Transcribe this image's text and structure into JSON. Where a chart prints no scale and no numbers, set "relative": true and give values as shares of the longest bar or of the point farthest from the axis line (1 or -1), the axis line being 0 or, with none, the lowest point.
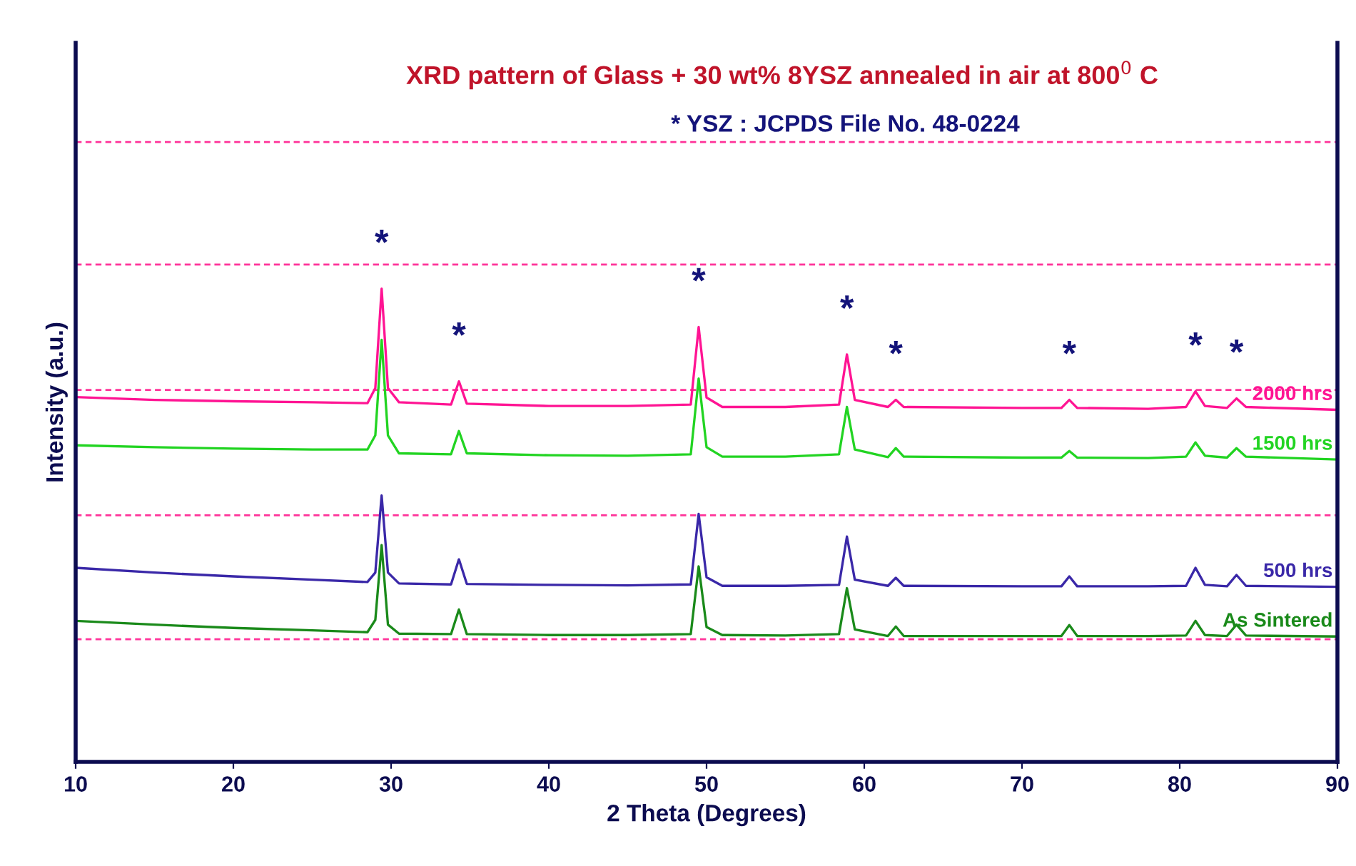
{
  "chart_data": {
    "type": "line",
    "relative": true,
    "title": "XRD pattern of Glass + 30 wt% 8YSZ annealed in air at 800$^{0}$ C",
    "xlabel": "2 Theta (Degrees)",
    "ylabel": "Intensity (a.u.)",
    "xlim": [
      10,
      90
    ],
    "xticks": [
      10,
      20,
      30,
      40,
      50,
      60,
      70,
      80,
      90
    ],
    "tick_labels": "x",
    "grid": false,
    "legend": false,
    "marker": "none",
    "line_style": "solid",
    "x": [
      10,
      15,
      20,
      25,
      28.5,
      29.0,
      29.4,
      29.8,
      30.5,
      33.8,
      34.3,
      34.8,
      40,
      45,
      49.0,
      49.5,
      50.0,
      51,
      55,
      58.4,
      58.9,
      59.4,
      61.5,
      62,
      62.5,
      70,
      72.5,
      73,
      73.5,
      78,
      80.4,
      81,
      81.6,
      83,
      83.6,
      84.2,
      90
    ],
    "series": [
      {
        "name": "2000 hrs",
        "color": "#ff1493",
        "values": [
          0.771,
          0.765,
          0.762,
          0.76,
          0.758,
          0.79,
          1.0,
          0.79,
          0.76,
          0.755,
          0.804,
          0.757,
          0.752,
          0.752,
          0.755,
          0.919,
          0.77,
          0.75,
          0.75,
          0.755,
          0.861,
          0.765,
          0.75,
          0.765,
          0.75,
          0.748,
          0.748,
          0.765,
          0.748,
          0.746,
          0.75,
          0.783,
          0.752,
          0.748,
          0.768,
          0.75,
          0.744
        ]
      },
      {
        "name": "1500 hrs",
        "color": "#22d422",
        "values": [
          0.669,
          0.665,
          0.662,
          0.66,
          0.66,
          0.69,
          0.892,
          0.69,
          0.652,
          0.65,
          0.699,
          0.652,
          0.648,
          0.647,
          0.65,
          0.81,
          0.665,
          0.645,
          0.645,
          0.65,
          0.75,
          0.66,
          0.644,
          0.663,
          0.645,
          0.643,
          0.643,
          0.657,
          0.643,
          0.642,
          0.645,
          0.675,
          0.647,
          0.643,
          0.663,
          0.645,
          0.639
        ]
      },
      {
        "name": "500 hrs",
        "color": "#3a28a8",
        "values": [
          0.41,
          0.4,
          0.392,
          0.385,
          0.38,
          0.4,
          0.563,
          0.4,
          0.377,
          0.375,
          0.428,
          0.376,
          0.374,
          0.373,
          0.375,
          0.524,
          0.39,
          0.372,
          0.372,
          0.374,
          0.476,
          0.385,
          0.372,
          0.389,
          0.372,
          0.371,
          0.371,
          0.392,
          0.371,
          0.371,
          0.372,
          0.41,
          0.374,
          0.371,
          0.395,
          0.372,
          0.37
        ]
      },
      {
        "name": "As Sintered",
        "color": "#1a8a1a",
        "values": [
          0.298,
          0.29,
          0.283,
          0.278,
          0.274,
          0.3,
          0.458,
          0.29,
          0.271,
          0.27,
          0.322,
          0.27,
          0.268,
          0.268,
          0.27,
          0.413,
          0.285,
          0.268,
          0.267,
          0.27,
          0.367,
          0.28,
          0.266,
          0.286,
          0.266,
          0.266,
          0.266,
          0.289,
          0.266,
          0.266,
          0.267,
          0.298,
          0.268,
          0.266,
          0.29,
          0.267,
          0.265
        ]
      }
    ],
    "ref_lines": [
      {
        "axis": "y",
        "value": 1.31,
        "label": null,
        "color": "#ff3399",
        "line_style": "dashed"
      },
      {
        "axis": "y",
        "value": 1.051,
        "label": null,
        "color": "#ff3399",
        "line_style": "dashed"
      },
      {
        "axis": "y",
        "value": 0.786,
        "label": null,
        "color": "#ff3399",
        "line_style": "dashed"
      },
      {
        "axis": "y",
        "value": 0.521,
        "label": null,
        "color": "#ff3399",
        "line_style": "dashed"
      },
      {
        "axis": "y",
        "value": 0.259,
        "label": null,
        "color": "#ff3399",
        "line_style": "dashed"
      }
    ],
    "annotations": [
      "* YSZ : JCPDS File No. 48-0224",
      {
        "text": "*",
        "x": 29.4,
        "y": 1.0
      },
      {
        "text": "*",
        "x": 34.3,
        "y": 0.804
      },
      {
        "text": "*",
        "x": 49.5,
        "y": 0.919
      },
      {
        "text": "*",
        "x": 58.9,
        "y": 0.861
      },
      {
        "text": "*",
        "x": 62,
        "y": 0.765
      },
      {
        "text": "*",
        "x": 73,
        "y": 0.765
      },
      {
        "text": "*",
        "x": 81,
        "y": 0.783
      },
      {
        "text": "*",
        "x": 83.6,
        "y": 0.768
      }
    ]
  }
}
